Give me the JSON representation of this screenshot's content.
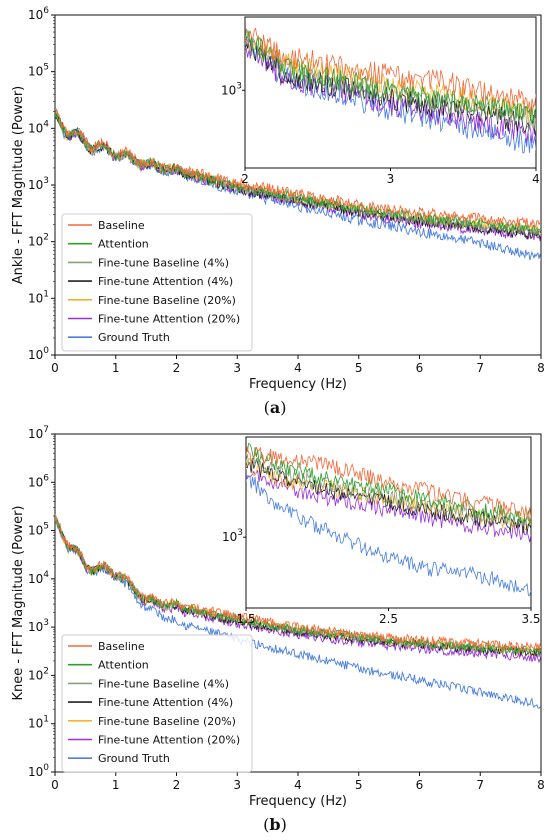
{
  "colors": {
    "Baseline": "#f26b3a",
    "Attention": "#2f9e2f",
    "Fine-tune Baseline (4%)": "#8aa07a",
    "Fine-tune Attention (4%)": "#222222",
    "Fine-tune Baseline (20%)": "#f2b42a",
    "Fine-tune Attention (20%)": "#9a2fe0",
    "Ground Truth": "#4a7fe0"
  },
  "chart_data": [
    {
      "type": "line",
      "caption": "(a)",
      "xlabel": "Frequency (Hz)",
      "ylabel": "Ankle - FFT Magnitude (Power)",
      "xlim": [
        0,
        8
      ],
      "ylim": [
        1,
        1000000
      ],
      "yscale": "log",
      "xticks": [
        "0",
        "1",
        "2",
        "3",
        "4",
        "5",
        "6",
        "7",
        "8"
      ],
      "yticks": [
        "10^0",
        "10^1",
        "10^2",
        "10^3",
        "10^4",
        "10^5",
        "10^6"
      ],
      "legend": "lower-left",
      "x": [
        0,
        0.5,
        1,
        1.5,
        2,
        3,
        4,
        5,
        6,
        7,
        8
      ],
      "series": [
        {
          "name": "Baseline",
          "values": [
            15000,
            6000,
            4000,
            2500,
            2000,
            1100,
            700,
            450,
            330,
            260,
            200
          ]
        },
        {
          "name": "Attention",
          "values": [
            14000,
            5500,
            3800,
            2400,
            1900,
            950,
            600,
            380,
            270,
            210,
            160
          ]
        },
        {
          "name": "Fine-tune Baseline (4%)",
          "values": [
            14000,
            5500,
            3700,
            2300,
            1800,
            900,
            560,
            360,
            250,
            190,
            150
          ]
        },
        {
          "name": "Fine-tune Attention (4%)",
          "values": [
            14000,
            5300,
            3600,
            2300,
            1800,
            850,
            520,
            330,
            230,
            170,
            130
          ]
        },
        {
          "name": "Fine-tune Baseline (20%)",
          "values": [
            14000,
            5400,
            3700,
            2400,
            1850,
            920,
            580,
            370,
            260,
            200,
            160
          ]
        },
        {
          "name": "Fine-tune Attention (20%)",
          "values": [
            14000,
            5300,
            3600,
            2250,
            1750,
            830,
            500,
            310,
            210,
            160,
            125
          ]
        },
        {
          "name": "Ground Truth",
          "values": [
            13000,
            5000,
            3500,
            2200,
            1700,
            750,
            420,
            240,
            150,
            95,
            50
          ]
        }
      ],
      "inset": {
        "xlim": [
          2,
          4
        ],
        "xticks": [
          "2",
          "3",
          "4"
        ],
        "yticks": [
          "10^3"
        ],
        "x": [
          2,
          2.25,
          2.5,
          2.75,
          3,
          3.25,
          3.5,
          3.75,
          4
        ],
        "series": [
          {
            "name": "Baseline",
            "values": [
              2000,
              1500,
              1400,
              1300,
              1200,
              1150,
              1050,
              950,
              850
            ]
          },
          {
            "name": "Attention",
            "values": [
              1900,
              1350,
              1200,
              1100,
              1000,
              920,
              860,
              800,
              720
            ]
          },
          {
            "name": "Fine-tune Baseline (4%)",
            "values": [
              1850,
              1300,
              1150,
              1050,
              960,
              900,
              840,
              780,
              700
            ]
          },
          {
            "name": "Fine-tune Attention (4%)",
            "values": [
              1800,
              1250,
              1100,
              1000,
              900,
              850,
              780,
              720,
              650
            ]
          },
          {
            "name": "Fine-tune Baseline (20%)",
            "values": [
              1900,
              1400,
              1250,
              1150,
              1050,
              980,
              900,
              830,
              760
            ]
          },
          {
            "name": "Fine-tune Attention (20%)",
            "values": [
              1750,
              1200,
              1050,
              950,
              830,
              780,
              700,
              640,
              600
            ]
          },
          {
            "name": "Ground Truth",
            "values": [
              1800,
              1200,
              1000,
              900,
              800,
              720,
              650,
              580,
              520
            ]
          }
        ]
      }
    },
    {
      "type": "line",
      "caption": "(b)",
      "xlabel": "Frequency (Hz)",
      "ylabel": "Knee - FFT Magnitude (Power)",
      "xlim": [
        0,
        8
      ],
      "ylim": [
        1,
        10000000
      ],
      "yscale": "log",
      "xticks": [
        "0",
        "1",
        "2",
        "3",
        "4",
        "5",
        "6",
        "7",
        "8"
      ],
      "yticks": [
        "10^0",
        "10^1",
        "10^2",
        "10^3",
        "10^4",
        "10^5",
        "10^6",
        "10^7"
      ],
      "legend": "lower-left",
      "x": [
        0,
        0.5,
        1,
        1.5,
        2,
        3,
        4,
        5,
        6,
        7,
        8
      ],
      "series": [
        {
          "name": "Baseline",
          "values": [
            150000,
            20000,
            15000,
            4000,
            3000,
            1700,
            1000,
            700,
            550,
            450,
            380
          ]
        },
        {
          "name": "Attention",
          "values": [
            140000,
            19000,
            14000,
            3800,
            2800,
            1500,
            900,
            620,
            480,
            390,
            320
          ]
        },
        {
          "name": "Fine-tune Baseline (4%)",
          "values": [
            140000,
            19000,
            14000,
            3600,
            2600,
            1400,
            850,
            580,
            450,
            360,
            300
          ]
        },
        {
          "name": "Fine-tune Attention (4%)",
          "values": [
            140000,
            18500,
            13500,
            3500,
            2500,
            1300,
            800,
            560,
            430,
            340,
            290
          ]
        },
        {
          "name": "Fine-tune Baseline (20%)",
          "values": [
            140000,
            19000,
            14000,
            3700,
            2700,
            1450,
            870,
            600,
            460,
            370,
            310
          ]
        },
        {
          "name": "Fine-tune Attention (20%)",
          "values": [
            140000,
            18000,
            13000,
            3300,
            2300,
            1150,
            700,
            470,
            360,
            280,
            230
          ]
        },
        {
          "name": "Ground Truth",
          "values": [
            130000,
            17000,
            12000,
            2500,
            1300,
            550,
            280,
            140,
            80,
            45,
            25
          ]
        }
      ],
      "inset": {
        "xlim": [
          1.5,
          3.5
        ],
        "xticks": [
          "1.5",
          "2.5",
          "3.5"
        ],
        "yticks": [
          "10^3"
        ],
        "x": [
          1.5,
          1.75,
          2,
          2.25,
          2.5,
          2.75,
          3,
          3.25,
          3.5
        ],
        "series": [
          {
            "name": "Baseline",
            "values": [
              4200,
              3700,
              3500,
              3000,
              2500,
              2200,
              1900,
              1700,
              1500
            ]
          },
          {
            "name": "Attention",
            "values": [
              4500,
              3300,
              2800,
              2500,
              2200,
              1900,
              1700,
              1550,
              1400
            ]
          },
          {
            "name": "Fine-tune Baseline (4%)",
            "values": [
              3800,
              3000,
              2500,
              2200,
              2000,
              1700,
              1550,
              1400,
              1300
            ]
          },
          {
            "name": "Fine-tune Attention (4%)",
            "values": [
              3500,
              2700,
              2300,
              2000,
              1800,
              1600,
              1450,
              1300,
              1200
            ]
          },
          {
            "name": "Fine-tune Baseline (20%)",
            "values": [
              3400,
              2600,
              2400,
              2100,
              1900,
              1650,
              1500,
              1350,
              1250
            ]
          },
          {
            "name": "Fine-tune Attention (20%)",
            "values": [
              3000,
              2400,
              2000,
              1800,
              1600,
              1400,
              1250,
              1150,
              1050
            ]
          },
          {
            "name": "Ground Truth",
            "values": [
              2800,
              1600,
              1200,
              900,
              700,
              600,
              550,
              500,
              400
            ]
          }
        ]
      }
    }
  ]
}
